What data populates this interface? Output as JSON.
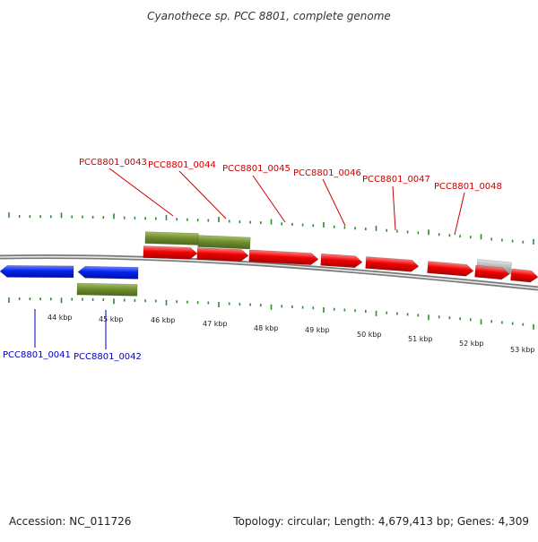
{
  "header": {
    "title": "Cyanothece sp. PCC 8801, complete genome"
  },
  "footer": {
    "accession": "Accession: NC_011726",
    "summary": "Topology: circular; Length: 4,679,413 bp; Genes: 4,309"
  },
  "colors": {
    "forward_gene": "#ee0000",
    "reverse_gene": "#0022ee",
    "feature_olive": "#6b8a2c",
    "feature_grey": "#b4b4b4",
    "backbone": "#7a7a7a",
    "ticks": "#2e8b2e",
    "label_forward": "#cc0000",
    "label_reverse": "#0000bb"
  },
  "map": {
    "scale_labels": [
      "44 kbp",
      "45 kbp",
      "46 kbp",
      "47 kbp",
      "48 kbp",
      "49 kbp",
      "50 kbp",
      "51 kbp",
      "52 kbp",
      "53 kbp"
    ],
    "genes_top": [
      {
        "id": "PCC8801_0043"
      },
      {
        "id": "PCC8801_0044"
      },
      {
        "id": "PCC8801_0045"
      },
      {
        "id": "PCC8801_0046"
      },
      {
        "id": "PCC8801_0047"
      },
      {
        "id": "PCC8801_0048"
      }
    ],
    "genes_bottom": [
      {
        "id": "PCC8801_0041"
      },
      {
        "id": "PCC8801_0042"
      }
    ]
  }
}
